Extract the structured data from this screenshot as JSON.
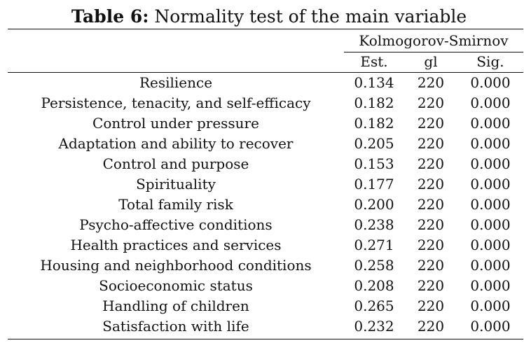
{
  "caption": {
    "label": "Table 6:",
    "text": "Normality test of the main variable"
  },
  "table": {
    "group_header": "Kolmogorov-Smirnov",
    "columns": [
      "Est.",
      "gl",
      "Sig."
    ],
    "rows": [
      {
        "name": "Resilience",
        "est": "0.134",
        "gl": "220",
        "sig": "0.000"
      },
      {
        "name": "Persistence, tenacity, and self-efficacy",
        "est": "0.182",
        "gl": "220",
        "sig": "0.000"
      },
      {
        "name": "Control under pressure",
        "est": "0.182",
        "gl": "220",
        "sig": "0.000"
      },
      {
        "name": "Adaptation and ability to recover",
        "est": "0.205",
        "gl": "220",
        "sig": "0.000"
      },
      {
        "name": "Control and purpose",
        "est": "0.153",
        "gl": "220",
        "sig": "0.000"
      },
      {
        "name": "Spirituality",
        "est": "0.177",
        "gl": "220",
        "sig": "0.000"
      },
      {
        "name": "Total family risk",
        "est": "0.200",
        "gl": "220",
        "sig": "0.000"
      },
      {
        "name": "Psycho-affective conditions",
        "est": "0.238",
        "gl": "220",
        "sig": "0.000"
      },
      {
        "name": "Health practices and services",
        "est": "0.271",
        "gl": "220",
        "sig": "0.000"
      },
      {
        "name": "Housing and neighborhood conditions",
        "est": "0.258",
        "gl": "220",
        "sig": "0.000"
      },
      {
        "name": "Socioeconomic status",
        "est": "0.208",
        "gl": "220",
        "sig": "0.000"
      },
      {
        "name": "Handling of children",
        "est": "0.265",
        "gl": "220",
        "sig": "0.000"
      },
      {
        "name": "Satisfaction with life",
        "est": "0.232",
        "gl": "220",
        "sig": "0.000"
      }
    ]
  }
}
